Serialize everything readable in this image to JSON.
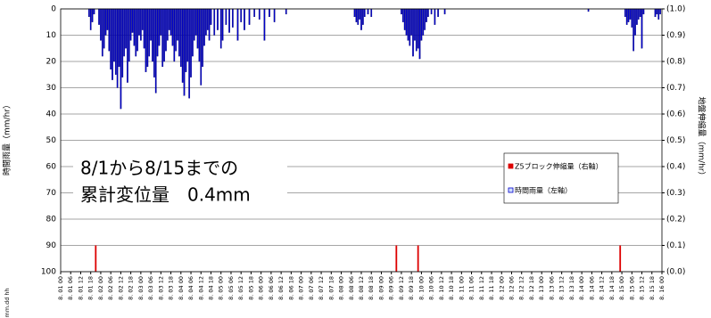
{
  "chart_data": {
    "type": "bar",
    "y_label": "時間雨量（mm/hr）",
    "y2_label": "地盤伸縮量（mm/hr）",
    "x_label": "mm.dd hh",
    "annotation": [
      "8/1から8/15までの",
      "累計変位量　0.4mm"
    ],
    "xlim": [
      0,
      360
    ],
    "ylim": [
      0,
      100
    ],
    "y_inverted": true,
    "yticks": [
      0,
      10,
      20,
      30,
      40,
      50,
      60,
      70,
      80,
      90,
      100
    ],
    "y2lim": [
      0,
      1
    ],
    "y2ticks": [
      {
        "value": 1,
        "label": "(1.0)"
      },
      {
        "value": 0.9,
        "label": "(0.9)"
      },
      {
        "value": 0.8,
        "label": "(0.8)"
      },
      {
        "value": 0.7,
        "label": "(0.7)"
      },
      {
        "value": 0.6,
        "label": "(0.6)"
      },
      {
        "value": 0.5,
        "label": "(0.5)"
      },
      {
        "value": 0.4,
        "label": "(0.4)"
      },
      {
        "value": 0.3,
        "label": "(0.3)"
      },
      {
        "value": 0.2,
        "label": "(0.2)"
      },
      {
        "value": 0.1,
        "label": "(0.1)"
      },
      {
        "value": 0,
        "label": "(0.0)"
      }
    ],
    "grid": true,
    "legend": "right",
    "xticks": [
      {
        "value": 0,
        "label": "8. 01 00"
      },
      {
        "value": 6,
        "label": "8. 01 06"
      },
      {
        "value": 12,
        "label": "8. 01 12"
      },
      {
        "value": 18,
        "label": "8. 01 18"
      },
      {
        "value": 24,
        "label": "8. 02 00"
      },
      {
        "value": 30,
        "label": "8. 02 06"
      },
      {
        "value": 36,
        "label": "8. 02 12"
      },
      {
        "value": 42,
        "label": "8. 02 18"
      },
      {
        "value": 48,
        "label": "8. 03 00"
      },
      {
        "value": 54,
        "label": "8. 03 06"
      },
      {
        "value": 60,
        "label": "8. 03 12"
      },
      {
        "value": 66,
        "label": "8. 03 18"
      },
      {
        "value": 72,
        "label": "8. 04 00"
      },
      {
        "value": 78,
        "label": "8. 04 06"
      },
      {
        "value": 84,
        "label": "8. 04 12"
      },
      {
        "value": 90,
        "label": "8. 04 18"
      },
      {
        "value": 96,
        "label": "8. 05 00"
      },
      {
        "value": 102,
        "label": "8. 05 06"
      },
      {
        "value": 108,
        "label": "8. 05 12"
      },
      {
        "value": 114,
        "label": "8. 05 18"
      },
      {
        "value": 120,
        "label": "8. 06 00"
      },
      {
        "value": 126,
        "label": "8. 06 06"
      },
      {
        "value": 132,
        "label": "8. 06 12"
      },
      {
        "value": 138,
        "label": "8. 06 18"
      },
      {
        "value": 144,
        "label": "8. 07 00"
      },
      {
        "value": 150,
        "label": "8. 07 06"
      },
      {
        "value": 156,
        "label": "8. 07 12"
      },
      {
        "value": 162,
        "label": "8. 07 18"
      },
      {
        "value": 168,
        "label": "8. 08 00"
      },
      {
        "value": 174,
        "label": "8. 08 06"
      },
      {
        "value": 180,
        "label": "8. 08 12"
      },
      {
        "value": 186,
        "label": "8. 08 18"
      },
      {
        "value": 192,
        "label": "8. 09 00"
      },
      {
        "value": 198,
        "label": "8. 09 06"
      },
      {
        "value": 204,
        "label": "8. 09 12"
      },
      {
        "value": 210,
        "label": "8. 09 18"
      },
      {
        "value": 216,
        "label": "8. 10 00"
      },
      {
        "value": 222,
        "label": "8. 10 06"
      },
      {
        "value": 228,
        "label": "8. 10 12"
      },
      {
        "value": 234,
        "label": "8. 10 18"
      },
      {
        "value": 240,
        "label": "8. 11 00"
      },
      {
        "value": 246,
        "label": "8. 11 06"
      },
      {
        "value": 252,
        "label": "8. 11 12"
      },
      {
        "value": 258,
        "label": "8. 11 18"
      },
      {
        "value": 264,
        "label": "8. 12 00"
      },
      {
        "value": 270,
        "label": "8. 12 06"
      },
      {
        "value": 276,
        "label": "8. 12 12"
      },
      {
        "value": 282,
        "label": "8. 12 18"
      },
      {
        "value": 288,
        "label": "8. 13 00"
      },
      {
        "value": 294,
        "label": "8. 13 06"
      },
      {
        "value": 300,
        "label": "8. 13 12"
      },
      {
        "value": 306,
        "label": "8. 13 18"
      },
      {
        "value": 312,
        "label": "8. 14 00"
      },
      {
        "value": 318,
        "label": "8. 14 06"
      },
      {
        "value": 324,
        "label": "8. 14 12"
      },
      {
        "value": 330,
        "label": "8. 14 18"
      },
      {
        "value": 336,
        "label": "8. 15 00"
      },
      {
        "value": 342,
        "label": "8. 15 06"
      },
      {
        "value": 348,
        "label": "8. 15 12"
      },
      {
        "value": 354,
        "label": "8. 15 18"
      },
      {
        "value": 360,
        "label": "8. 16 00"
      }
    ],
    "series": [
      {
        "name": "Z5ブロック伸縮量（右軸）",
        "color": "#dd0000",
        "axis": "y2",
        "x": [
          21,
          201,
          214,
          335
        ],
        "values": [
          0.1,
          0.1,
          0.1,
          0.1
        ]
      },
      {
        "name": "時間雨量（左軸）",
        "color": "#0000cc",
        "axis": "y",
        "x": [
          17,
          18,
          19,
          20,
          23,
          24,
          25,
          26,
          27,
          28,
          29,
          30,
          31,
          32,
          33,
          34,
          35,
          36,
          37,
          38,
          39,
          40,
          41,
          42,
          43,
          44,
          45,
          46,
          47,
          48,
          49,
          50,
          51,
          52,
          53,
          54,
          55,
          56,
          57,
          58,
          59,
          60,
          61,
          62,
          63,
          64,
          65,
          66,
          67,
          68,
          69,
          70,
          71,
          72,
          73,
          74,
          75,
          76,
          77,
          78,
          79,
          80,
          81,
          82,
          83,
          84,
          85,
          86,
          87,
          88,
          89,
          90,
          92,
          94,
          96,
          97,
          99,
          101,
          103,
          106,
          108,
          110,
          113,
          116,
          119,
          122,
          125,
          128,
          135,
          176,
          177,
          178,
          179,
          180,
          181,
          182,
          184,
          186,
          204,
          205,
          206,
          207,
          208,
          209,
          210,
          211,
          212,
          213,
          214,
          215,
          216,
          217,
          218,
          219,
          220,
          222,
          224,
          226,
          230,
          316,
          338,
          339,
          340,
          341,
          342,
          343,
          344,
          345,
          346,
          347,
          348,
          349,
          356,
          357,
          358,
          359
        ],
        "values": [
          3,
          8,
          5,
          2,
          6,
          12,
          18,
          15,
          10,
          8,
          16,
          23,
          27,
          20,
          25,
          30,
          22,
          38,
          26,
          18,
          15,
          28,
          20,
          12,
          9,
          14,
          18,
          16,
          10,
          12,
          8,
          15,
          24,
          22,
          18,
          12,
          20,
          26,
          32,
          18,
          14,
          10,
          22,
          20,
          16,
          12,
          8,
          10,
          14,
          20,
          16,
          12,
          18,
          22,
          28,
          33,
          24,
          20,
          34,
          26,
          18,
          12,
          10,
          15,
          20,
          29,
          22,
          14,
          10,
          8,
          12,
          6,
          10,
          8,
          15,
          12,
          6,
          9,
          7,
          12,
          5,
          8,
          6,
          3,
          4,
          12,
          3,
          5,
          2,
          3,
          5,
          6,
          4,
          8,
          6,
          3,
          2,
          3,
          2,
          5,
          8,
          10,
          12,
          14,
          10,
          18,
          12,
          16,
          15,
          19,
          12,
          10,
          8,
          5,
          3,
          2,
          6,
          3,
          2,
          1,
          3,
          6,
          5,
          4,
          7,
          16,
          10,
          6,
          4,
          3,
          15,
          2,
          3,
          2,
          4,
          2
        ]
      }
    ]
  }
}
